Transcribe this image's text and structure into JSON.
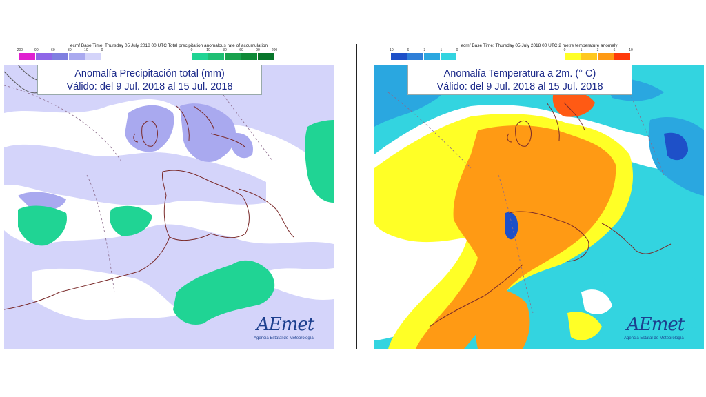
{
  "left": {
    "legend_title": "ecmf  Base Time: Thursday 05 July 2018 00 UTC Total precipitation anomalous rate of accumulation",
    "legend_ticks": [
      "-200",
      "-90",
      "-60",
      "-30",
      "-10",
      "0",
      "0",
      "10",
      "30",
      "60",
      "90",
      "200"
    ],
    "negative_colors": [
      "#e020d0",
      "#8f66e8",
      "#7f7fe0",
      "#a9a9ef",
      "#d4d4fa"
    ],
    "positive_colors": [
      "#20d494",
      "#1fbf74",
      "#18a24e",
      "#0f8a38",
      "#07752a"
    ],
    "title_line1": "Anomalía Precipitación total (mm)",
    "title_line2": "Válido: del 9 Jul. 2018 al 15 Jul. 2018"
  },
  "right": {
    "legend_title": "ecmf  Base Time: Thursday 05 July 2018 00 UTC 2 metre temperature anomaly",
    "legend_ticks": [
      "-10",
      "-6",
      "-3",
      "-1",
      "0",
      "0",
      "1",
      "3",
      "6",
      "10"
    ],
    "negative_colors": [
      "#1e50c8",
      "#2f7fd8",
      "#2aa7e0",
      "#33d4e0"
    ],
    "positive_colors": [
      "#ffff26",
      "#ffc81e",
      "#ff9a14",
      "#ff3a0a"
    ],
    "title_line1": "Anomalía Temperatura a 2m. (° C)",
    "title_line2": "Válido: del 9 Jul. 2018 al 15 Jul. 2018"
  },
  "logo": {
    "wordmark": "AEmet",
    "subtitle": "Agencia Estatal de Meteorología"
  }
}
